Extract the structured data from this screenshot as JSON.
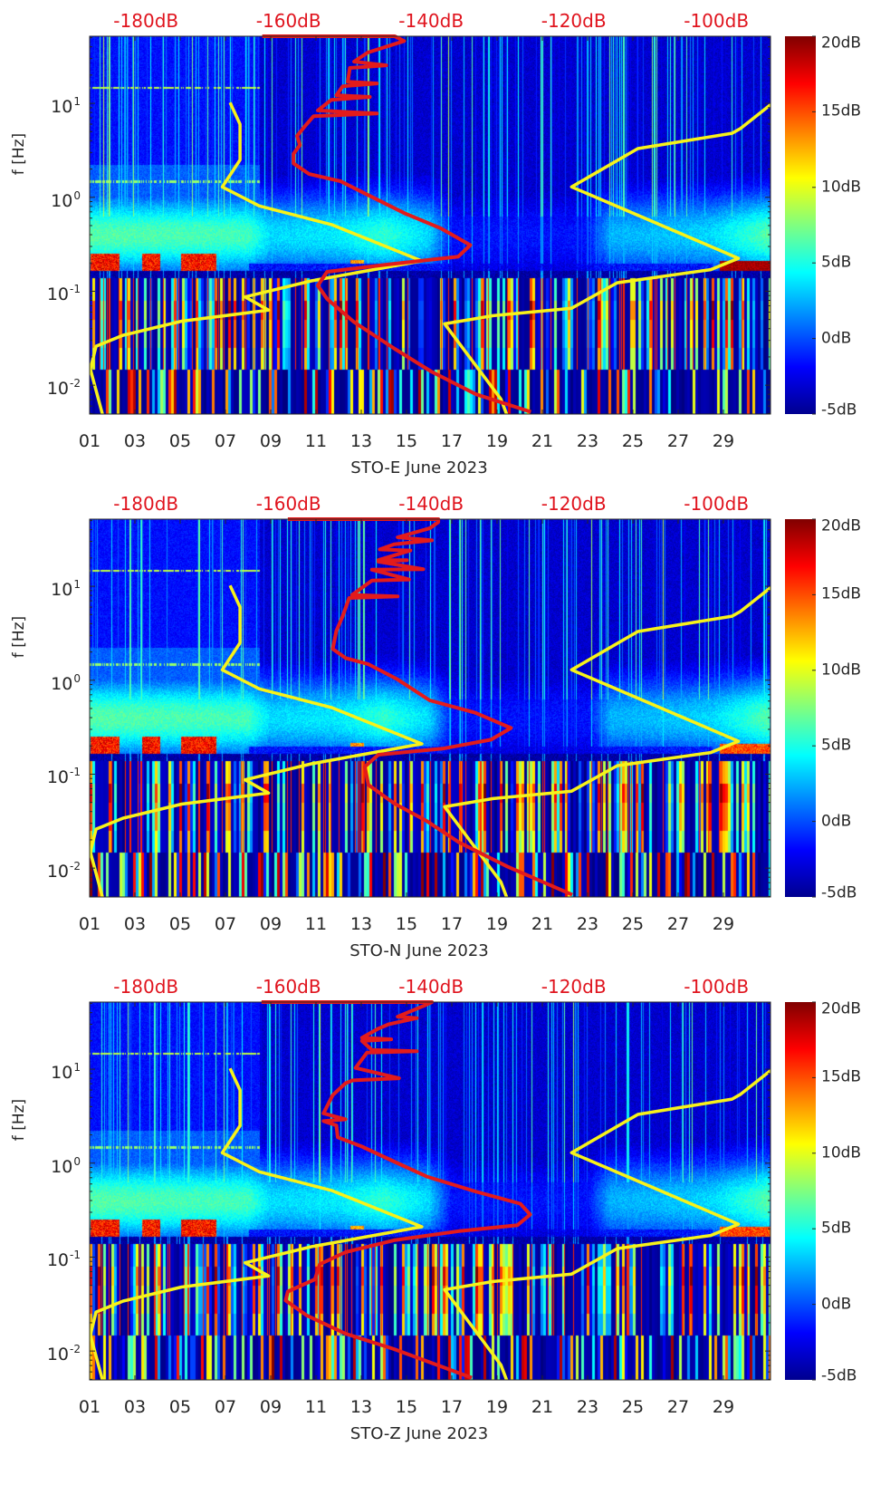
{
  "figure": {
    "ylabel": "f [Hz]",
    "x_ticks": [
      "01",
      "03",
      "05",
      "07",
      "09",
      "11",
      "13",
      "15",
      "17",
      "19",
      "21",
      "23",
      "25",
      "27",
      "29"
    ],
    "x_tick_days": [
      1,
      3,
      5,
      7,
      9,
      11,
      13,
      15,
      17,
      19,
      21,
      23,
      25,
      27,
      29
    ],
    "xlim_days": [
      1,
      31.08
    ],
    "ylim_hz": [
      0.00493,
      51.8
    ],
    "y_ticks": [
      {
        "base": "10",
        "exp": "1",
        "value": 10
      },
      {
        "base": "10",
        "exp": "0",
        "value": 1
      },
      {
        "base": "10",
        "exp": "-1",
        "value": 0.1
      },
      {
        "base": "10",
        "exp": "-2",
        "value": 0.01
      }
    ],
    "top_axis": {
      "labels": [
        "-180dB",
        "-160dB",
        "-140dB",
        "-120dB",
        "-100dB"
      ],
      "values": [
        -180,
        -160,
        -140,
        -120,
        -100
      ],
      "range_db": [
        -187.9,
        -92.4
      ]
    },
    "colorbar": {
      "labels": [
        "20dB",
        "15dB",
        "10dB",
        "5dB",
        "0dB",
        "-5dB"
      ],
      "values": [
        20,
        15,
        10,
        5,
        0,
        -5
      ],
      "range": [
        -5,
        20
      ],
      "colormap": "jet"
    },
    "colors": {
      "model_lines": "#f7f21a",
      "psd_line": "#e31b1b",
      "label_red": "#e0141e"
    }
  },
  "chart_data": [
    {
      "type": "heatmap",
      "xlabel": "STO-E June 2023",
      "ylabel": "f [Hz]",
      "yscale": "log",
      "variant": "E",
      "model_low": [
        [
          -168.2,
          10.2
        ],
        [
          -166.8,
          6.0
        ],
        [
          -166.8,
          2.5
        ],
        [
          -169.3,
          1.29
        ],
        [
          -164.1,
          0.81
        ],
        [
          -153.9,
          0.51
        ],
        [
          -141.3,
          0.21
        ],
        [
          -156.8,
          0.129
        ],
        [
          -166.1,
          0.087
        ],
        [
          -162.8,
          0.063
        ],
        [
          -175.0,
          0.048
        ],
        [
          -183.2,
          0.034
        ],
        [
          -187.0,
          0.026
        ],
        [
          -187.8,
          0.0148
        ],
        [
          -186.1,
          0.0049
        ]
      ],
      "model_high": [
        [
          -91.8,
          10.5
        ],
        [
          -96.6,
          5.4
        ],
        [
          -97.8,
          4.8
        ],
        [
          -111.0,
          3.3
        ],
        [
          -120.3,
          1.29
        ],
        [
          -96.9,
          0.224
        ],
        [
          -100.8,
          0.17
        ],
        [
          -113.9,
          0.123
        ],
        [
          -120.3,
          0.066
        ],
        [
          -131.3,
          0.055
        ],
        [
          -138.1,
          0.045
        ],
        [
          -130.2,
          0.0071
        ],
        [
          -129.4,
          0.0049
        ]
      ],
      "psd": [
        [
          -163.7,
          51.8
        ],
        [
          -145.1,
          51.8
        ],
        [
          -143.8,
          46
        ],
        [
          -148.9,
          34.7
        ],
        [
          -150.8,
          27.8
        ],
        [
          -146.3,
          25.4
        ],
        [
          -151.4,
          23.8
        ],
        [
          -151.7,
          17
        ],
        [
          -147.6,
          16.3
        ],
        [
          -152.4,
          15.2
        ],
        [
          -153.3,
          12.2
        ],
        [
          -148.6,
          11.7
        ],
        [
          -154,
          10.9
        ],
        [
          -155.9,
          8.4
        ],
        [
          -147.6,
          7.8
        ],
        [
          -156.5,
          7.3
        ],
        [
          -157.8,
          5.6
        ],
        [
          -158.8,
          4.5
        ],
        [
          -158.4,
          3.6
        ],
        [
          -159.3,
          2.9
        ],
        [
          -159.3,
          2.3
        ],
        [
          -157.1,
          1.77
        ],
        [
          -152.7,
          1.48
        ],
        [
          -148.9,
          1.06
        ],
        [
          -143.8,
          0.68
        ],
        [
          -138.7,
          0.47
        ],
        [
          -134.5,
          0.31
        ],
        [
          -136.2,
          0.234
        ],
        [
          -146.3,
          0.192
        ],
        [
          -154.6,
          0.161
        ],
        [
          -155.9,
          0.115
        ],
        [
          -154.6,
          0.083
        ],
        [
          -150.8,
          0.047
        ],
        [
          -145.1,
          0.0244
        ],
        [
          -140,
          0.014
        ],
        [
          -133.7,
          0.008
        ],
        [
          -126,
          0.0052
        ]
      ]
    },
    {
      "type": "heatmap",
      "xlabel": "STO-N June 2023",
      "ylabel": "f [Hz]",
      "yscale": "log",
      "variant": "N",
      "model_low": [
        [
          -168.2,
          10.2
        ],
        [
          -166.8,
          6.0
        ],
        [
          -166.8,
          2.5
        ],
        [
          -169.3,
          1.29
        ],
        [
          -164.1,
          0.81
        ],
        [
          -153.9,
          0.51
        ],
        [
          -141.3,
          0.21
        ],
        [
          -156.8,
          0.129
        ],
        [
          -166.1,
          0.087
        ],
        [
          -162.8,
          0.063
        ],
        [
          -175.0,
          0.048
        ],
        [
          -183.2,
          0.034
        ],
        [
          -187.0,
          0.026
        ],
        [
          -187.8,
          0.0148
        ],
        [
          -186.1,
          0.0049
        ]
      ],
      "model_high": [
        [
          -91.8,
          10.5
        ],
        [
          -96.6,
          5.4
        ],
        [
          -97.8,
          4.8
        ],
        [
          -111.0,
          3.3
        ],
        [
          -120.3,
          1.29
        ],
        [
          -96.9,
          0.224
        ],
        [
          -100.8,
          0.17
        ],
        [
          -113.9,
          0.123
        ],
        [
          -120.3,
          0.066
        ],
        [
          -131.3,
          0.055
        ],
        [
          -138.1,
          0.045
        ],
        [
          -130.2,
          0.0071
        ],
        [
          -129.4,
          0.0049
        ]
      ],
      "psd": [
        [
          -160.1,
          51.8
        ],
        [
          -139.0,
          51.8
        ],
        [
          -139.0,
          48.1
        ],
        [
          -140.2,
          41.4
        ],
        [
          -144.7,
          33.2
        ],
        [
          -139.9,
          30.8
        ],
        [
          -145.2,
          28
        ],
        [
          -147.2,
          24.7
        ],
        [
          -142.9,
          24
        ],
        [
          -147.4,
          19
        ],
        [
          -143.4,
          19
        ],
        [
          -147.4,
          18.3
        ],
        [
          -141.1,
          15.2
        ],
        [
          -148.3,
          15
        ],
        [
          -143.1,
          11.8
        ],
        [
          -148.3,
          11.5
        ],
        [
          -151.1,
          8.1
        ],
        [
          -144.7,
          7.8
        ],
        [
          -151.5,
          7.5
        ],
        [
          -152.4,
          4.8
        ],
        [
          -153.3,
          3.35
        ],
        [
          -153.8,
          2.15
        ],
        [
          -152.0,
          1.72
        ],
        [
          -148.8,
          1.48
        ],
        [
          -144.7,
          1.02
        ],
        [
          -140.2,
          0.61
        ],
        [
          -133.8,
          0.45
        ],
        [
          -128.8,
          0.31
        ],
        [
          -131.6,
          0.233
        ],
        [
          -138.4,
          0.187
        ],
        [
          -147.4,
          0.161
        ],
        [
          -149.3,
          0.12
        ],
        [
          -148.8,
          0.077
        ],
        [
          -145.2,
          0.049
        ],
        [
          -140.6,
          0.0316
        ],
        [
          -136.1,
          0.0188
        ],
        [
          -129.3,
          0.0104
        ],
        [
          -120.2,
          0.0052
        ]
      ]
    },
    {
      "type": "heatmap",
      "xlabel": "STO-Z June 2023",
      "ylabel": "f [Hz]",
      "yscale": "log",
      "variant": "Z",
      "model_low": [
        [
          -168.2,
          10.2
        ],
        [
          -166.8,
          6.0
        ],
        [
          -166.8,
          2.5
        ],
        [
          -169.3,
          1.29
        ],
        [
          -164.1,
          0.81
        ],
        [
          -153.9,
          0.51
        ],
        [
          -141.3,
          0.21
        ],
        [
          -156.8,
          0.129
        ],
        [
          -166.1,
          0.087
        ],
        [
          -162.8,
          0.063
        ],
        [
          -175.0,
          0.048
        ],
        [
          -183.2,
          0.034
        ],
        [
          -187.0,
          0.026
        ],
        [
          -187.8,
          0.0148
        ],
        [
          -186.1,
          0.0049
        ]
      ],
      "model_high": [
        [
          -91.8,
          10.5
        ],
        [
          -96.6,
          5.4
        ],
        [
          -97.8,
          4.8
        ],
        [
          -111.0,
          3.3
        ],
        [
          -120.3,
          1.29
        ],
        [
          -96.9,
          0.224
        ],
        [
          -100.8,
          0.17
        ],
        [
          -113.9,
          0.123
        ],
        [
          -120.3,
          0.066
        ],
        [
          -131.3,
          0.055
        ],
        [
          -138.1,
          0.045
        ],
        [
          -130.2,
          0.0071
        ],
        [
          -129.4,
          0.0049
        ]
      ],
      "psd": [
        [
          -163.8,
          51.8
        ],
        [
          -139.9,
          51.8
        ],
        [
          -141.1,
          47
        ],
        [
          -142.0,
          44
        ],
        [
          -144.7,
          36.2
        ],
        [
          -142.0,
          35
        ],
        [
          -146,
          30
        ],
        [
          -147.4,
          27
        ],
        [
          -149.7,
          21.6
        ],
        [
          -145.6,
          20.8
        ],
        [
          -149.7,
          20
        ],
        [
          -148.3,
          16
        ],
        [
          -142.0,
          15.5
        ],
        [
          -149,
          15
        ],
        [
          -150.6,
          10.3
        ],
        [
          -144.5,
          8.0
        ],
        [
          -151,
          7.6
        ],
        [
          -152.0,
          7.1
        ],
        [
          -153.8,
          5.3
        ],
        [
          -155.1,
          3.39
        ],
        [
          -152,
          2.93
        ],
        [
          -155.1,
          2.8
        ],
        [
          -153.3,
          2.52
        ],
        [
          -153.1,
          1.88
        ],
        [
          -149.7,
          1.5
        ],
        [
          -145.2,
          1.04
        ],
        [
          -140.6,
          0.72
        ],
        [
          -133.8,
          0.5
        ],
        [
          -127.5,
          0.37
        ],
        [
          -126.1,
          0.284
        ],
        [
          -127.9,
          0.219
        ],
        [
          -136.1,
          0.189
        ],
        [
          -145.2,
          0.151
        ],
        [
          -152.0,
          0.113
        ],
        [
          -155.6,
          0.084
        ],
        [
          -156.3,
          0.058
        ],
        [
          -160.1,
          0.043
        ],
        [
          -160.4,
          0.0345
        ],
        [
          -157.4,
          0.0238
        ],
        [
          -152.0,
          0.0153
        ],
        [
          -145.2,
          0.0105
        ],
        [
          -134.3,
          0.0052
        ]
      ]
    }
  ]
}
